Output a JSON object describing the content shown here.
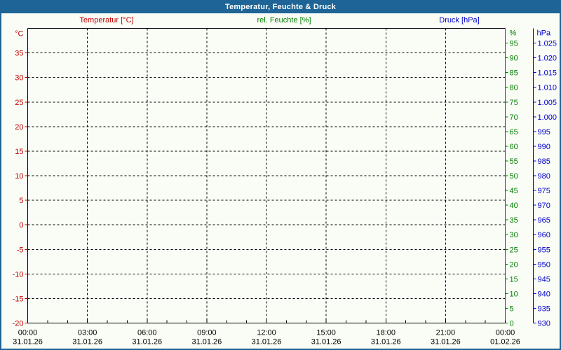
{
  "window": {
    "title": "Temperatur, Feuchte & Druck",
    "titlebar_color": "#1e6496",
    "border_color": "#1e6496",
    "background_color": "#fafdf6"
  },
  "chart_data": {
    "type": "line",
    "title": "Temperatur, Feuchte & Druck",
    "series": [
      {
        "name": "Temperatur",
        "axis": "temperature",
        "color": "#c00000",
        "values": []
      },
      {
        "name": "rel. Feuchte",
        "axis": "humidity",
        "color": "#007d00",
        "values": []
      },
      {
        "name": "Druck",
        "axis": "pressure",
        "color": "#0000d0",
        "values": []
      }
    ],
    "grid": {
      "style": "dashed",
      "color": "#000000",
      "horizontal_lines_at_celsius": [
        35,
        30,
        25,
        20,
        15,
        10,
        5,
        0,
        -5,
        -10,
        -15
      ],
      "vertical_lines_at_hours": [
        3,
        6,
        9,
        12,
        15,
        18,
        21
      ]
    },
    "axes": {
      "temperature": {
        "title": "Temperatur [°C]",
        "unit": "°C",
        "color": "#c00000",
        "side": "left",
        "min": -20,
        "max": 40,
        "tick_labels": [
          35,
          30,
          25,
          20,
          15,
          10,
          5,
          0,
          -5,
          -10,
          -15,
          -20
        ]
      },
      "humidity": {
        "title": "rel. Feuchte [%]",
        "unit": "%",
        "color": "#007d00",
        "side": "right-inner",
        "min": 0,
        "max": 100,
        "tick_labels": [
          95,
          90,
          85,
          80,
          75,
          70,
          65,
          60,
          55,
          50,
          45,
          40,
          35,
          30,
          25,
          20,
          15,
          10,
          5,
          0
        ]
      },
      "pressure": {
        "title": "Druck [hPa]",
        "unit": "hPa",
        "color": "#0000d0",
        "side": "right-outer",
        "min": 930,
        "max": 1030,
        "tick_labels": [
          "1.025",
          "1.020",
          "1.015",
          "1.010",
          "1.005",
          "1.000",
          "995",
          "990",
          "985",
          "980",
          "975",
          "970",
          "965",
          "960",
          "955",
          "950",
          "945",
          "940",
          "935",
          "930"
        ]
      },
      "time": {
        "color": "#000000",
        "hours_total": 24,
        "major_step_hours": 3,
        "minor_step_hours": 1,
        "tick_labels": [
          {
            "time": "00:00",
            "date": "31.01.26"
          },
          {
            "time": "03:00",
            "date": "31.01.26"
          },
          {
            "time": "06:00",
            "date": "31.01.26"
          },
          {
            "time": "09:00",
            "date": "31.01.26"
          },
          {
            "time": "12:00",
            "date": "31.01.26"
          },
          {
            "time": "15:00",
            "date": "31.01.26"
          },
          {
            "time": "18:00",
            "date": "31.01.26"
          },
          {
            "time": "21:00",
            "date": "31.01.26"
          },
          {
            "time": "00:00",
            "date": "01.02.26"
          }
        ]
      }
    }
  }
}
